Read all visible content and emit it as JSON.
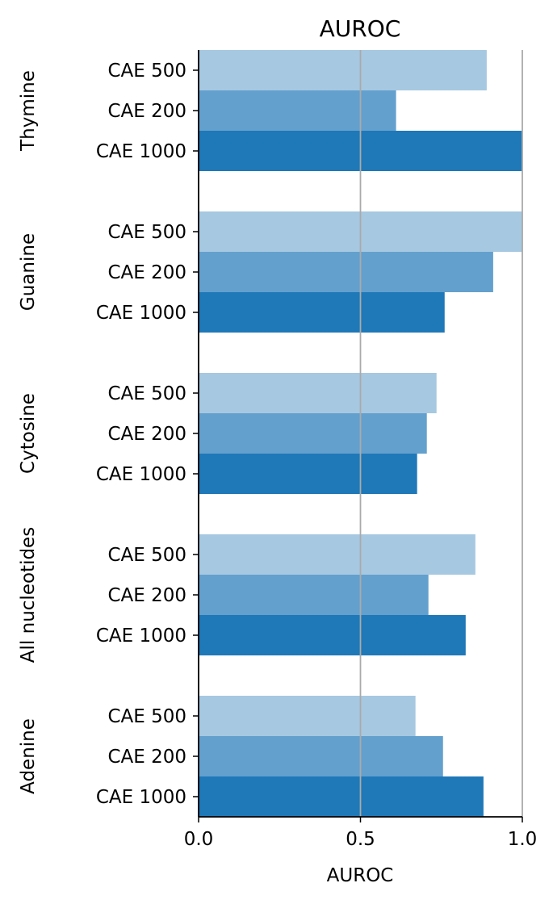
{
  "chart_data": {
    "type": "bar",
    "orientation": "horizontal",
    "title": "AUROC",
    "xlabel": "AUROC",
    "ylabel": "",
    "xlim": [
      0,
      1.0
    ],
    "xticks": [
      "0.0",
      "0.5",
      "1.0"
    ],
    "reference_lines": [
      0.5,
      1.0
    ],
    "grid": false,
    "legend": "none",
    "series": [
      {
        "label": "CAE 500",
        "color": "#a6c8e1"
      },
      {
        "label": "CAE 200",
        "color": "#63a0cd"
      },
      {
        "label": "CAE 1000",
        "color": "#1f78b8"
      }
    ],
    "groups": [
      {
        "name": "Thymine",
        "values": [
          0.89,
          0.61,
          1.0
        ]
      },
      {
        "name": "Guanine",
        "values": [
          1.0,
          0.91,
          0.76
        ]
      },
      {
        "name": "Cytosine",
        "values": [
          0.735,
          0.705,
          0.675
        ]
      },
      {
        "name": "All nucleotides",
        "values": [
          0.855,
          0.71,
          0.825
        ]
      },
      {
        "name": "Adenine",
        "values": [
          0.67,
          0.755,
          0.88
        ]
      }
    ],
    "colors": {
      "axis": "#000000",
      "reference_line": "#aaaaaa"
    }
  }
}
